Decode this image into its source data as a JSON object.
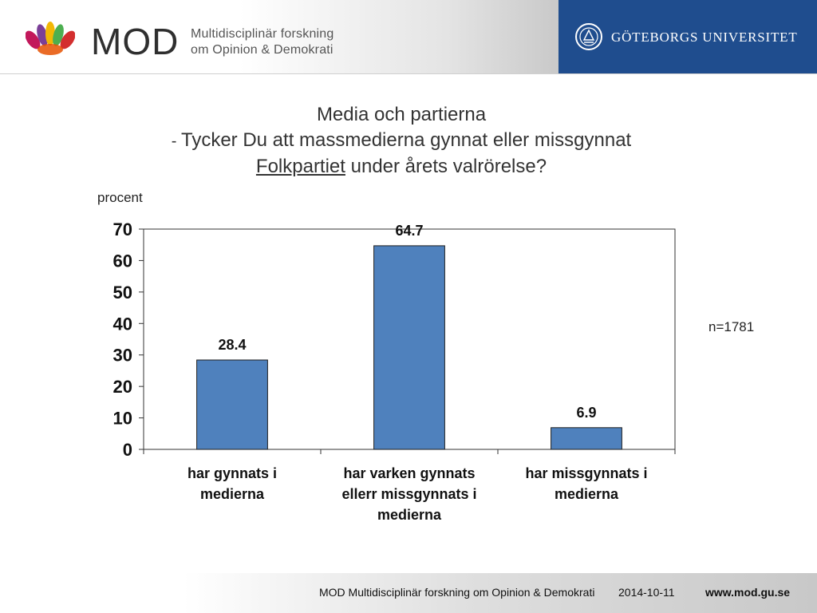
{
  "header": {
    "logo_text": "MOD",
    "logo_sub_line1": "Multidisciplinär forskning",
    "logo_sub_line2": "om Opinion & Demokrati",
    "university": "GÖTEBORGS UNIVERSITET",
    "brand_colors": {
      "university_panel": "#1f4d8e"
    }
  },
  "titles": {
    "line1": "Media och partierna",
    "line2_dash": "- ",
    "line2": "Tycker Du att massmedierna gynnat eller missgynnat",
    "line3_underlined": "Folkpartiet",
    "line3_rest": " under årets valrörelse?"
  },
  "y_unit_label": "procent",
  "sample_note": "n=1781",
  "chart_data": {
    "type": "bar",
    "categories": [
      [
        "har gynnats i",
        "medierna"
      ],
      [
        "har varken gynnats",
        "ellerr missgynnats i",
        "medierna"
      ],
      [
        "har missgynnats i",
        "medierna"
      ]
    ],
    "values": [
      28.4,
      64.7,
      6.9
    ],
    "value_labels": [
      "28.4",
      "64.7",
      "6.9"
    ],
    "ylim": [
      0,
      70
    ],
    "yticks": [
      "0",
      "10",
      "20",
      "30",
      "40",
      "50",
      "60",
      "70"
    ],
    "bar_color": "#4f81bd",
    "grid": false,
    "legend": "none"
  },
  "footer": {
    "org": "MOD Multidisciplinär forskning om Opinion & Demokrati",
    "date": "2014-10-11",
    "url": "www.mod.gu.se"
  }
}
